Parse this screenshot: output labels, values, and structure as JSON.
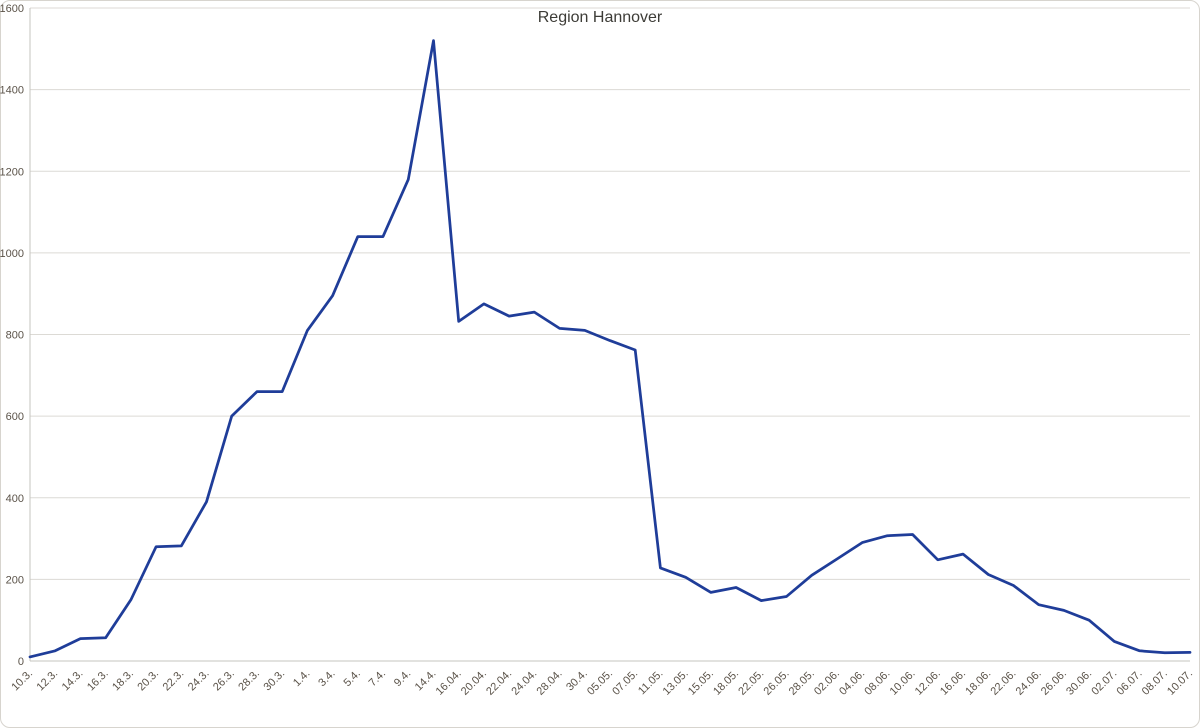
{
  "chart_data": {
    "type": "line",
    "title": "Region Hannover",
    "categories": [
      "10.3.",
      "12.3.",
      "14.3.",
      "16.3.",
      "18.3.",
      "20.3.",
      "22.3.",
      "24.3.",
      "26.3.",
      "28.3.",
      "30.3.",
      "1.4.",
      "3.4.",
      "5.4.",
      "7.4.",
      "9.4.",
      "14.4.",
      "16.04.",
      "20.04.",
      "22.04.",
      "24.04.",
      "28.04.",
      "30.4.",
      "05.05.",
      "07.05.",
      "11.05.",
      "13.05.",
      "15.05.",
      "18.05.",
      "22.05.",
      "26.05.",
      "28.05.",
      "02.06.",
      "04.06.",
      "08.06.",
      "10.06.",
      "12.06.",
      "16.06.",
      "18.06.",
      "22.06.",
      "24.06.",
      "26.06.",
      "30.06.",
      "02.07.",
      "06.07.",
      "08.07.",
      "10.07."
    ],
    "values": [
      10,
      25,
      55,
      57,
      150,
      280,
      282,
      390,
      600,
      660,
      660,
      810,
      895,
      1040,
      1040,
      1180,
      1520,
      832,
      875,
      845,
      855,
      815,
      810,
      785,
      762,
      228,
      205,
      168,
      180,
      148,
      158,
      210,
      250,
      290,
      307,
      310,
      248,
      262,
      212,
      185,
      138,
      124,
      100,
      48,
      25,
      20,
      21
    ],
    "xlabel": "",
    "ylabel": "",
    "ylim": [
      0,
      1600
    ],
    "y_ticks": [
      0,
      200,
      400,
      600,
      800,
      1000,
      1200,
      1400,
      1600
    ],
    "grid": "horizontal",
    "legend": "none",
    "colors": {
      "line": "#1f3d99",
      "gridline": "#dcdad5",
      "axis": "#c6c4bf",
      "tick_text": "#5b5349",
      "title_text": "#3d3c37",
      "background": "#ffffff",
      "border": "#d7d4ce"
    }
  }
}
